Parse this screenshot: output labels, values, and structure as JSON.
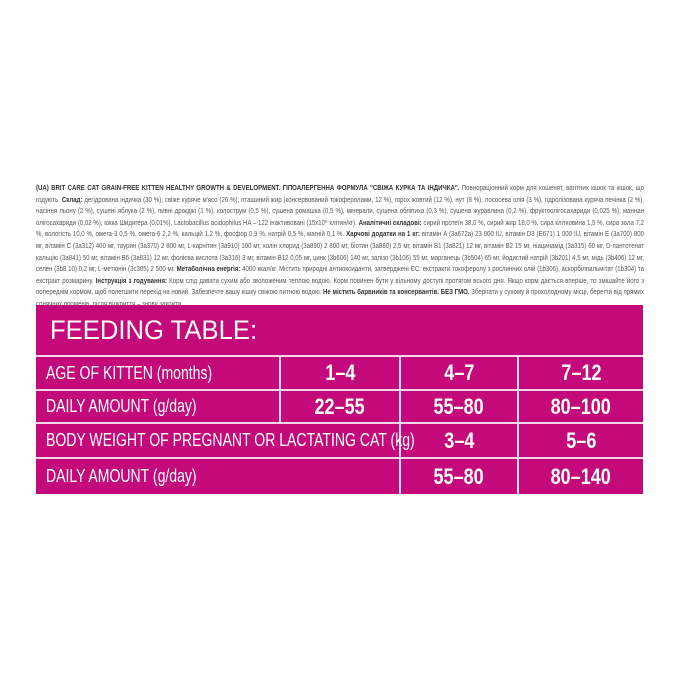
{
  "label": {
    "segments": [
      {
        "bold": true,
        "text": "(UA) BRIT CARE CAT GRAIN-FREE KITTEN HEALTHY GROWTH & DEVELOPMENT. ГІПОАЛЕРГЕННА ФОРМУЛА \"СВІЖА КУРКА ТА ІНДИЧКА\". "
      },
      {
        "bold": false,
        "text": "Повнораціонний корм для кошенят, вагітних кішок та кішок, що годують. "
      },
      {
        "bold": true,
        "text": "Склад:"
      },
      {
        "bold": false,
        "text": " дегідрована індичка (30 %), свіже куряче м'ясо (26 %), пташиний жир (консервований токоферолами, 12 %), горох жовтий (12 %), нут (8 %), лососева олія (3 %), гідролізована куряча печінка (2 %), насіння льону (2 %), сушені яблука (2 %), пивні дріжджі (1 %), колострум (0,5 %), сушена ромашка (0,5 %), мінерали, сушена обліпиха (0,3 %), сушена журавлина (0,2 %), фруктоолігосахариди (0,025 %), маннан олігосахариди (0,02 %), юкка Шидигера (0,01%), Lactobacillus acidophilus HA – 122 інактивовані (15x10⁹ клітин/кг). "
      },
      {
        "bold": true,
        "text": "Аналітичні складові:"
      },
      {
        "bold": false,
        "text": " сирий протеїн 38,0 %, сирий жир 18,0 %, сира клітковина 1,5 %, сира зола 7,2 %, вологість 10,0 %, омега-3 0,5 %, омега-6 2,2 %, кальцій 1,2 %, фосфор 0,9 %, натрій 0,5 %, магній 0,1 %. "
      },
      {
        "bold": true,
        "text": "Харчові додатки на 1 кг:"
      },
      {
        "bold": false,
        "text": " вітамін A (3a672a) 23 000 IU, вітамін D3 (E671) 1 000 IU, вітамін E (3a700) 800 мг, вітамін C (3a312) 400 мг, таурин (3a370) 2 800 мг, L-карнітин (3a910) 100 мг, холін хлорид (3a890) 2 800 мг, біотин (3a880) 2,5 мг, вітамін B1 (3a821) 12 мг, вітамін B2 15 мг, ніацинамід (3a315) 60 мг, D-пантотенат кальцію (3a841) 50 мг, вітамін B6 (3a831) 12 мг, фолієва кислота (3a316) 3 мг, вітамін B12 0,05 мг, цинк (3b606) 140 мг, залізо (3b106) 55 мг, марганець (3b504) 65 мг, йодистий натрій (3b201) 4,5 мг, мідь (3b406) 12 мг, селен (3b8.10) 0,2 мг, L-метіонін (3c305) 2 500 мг. "
      },
      {
        "bold": true,
        "text": "Метаболічна енергія:"
      },
      {
        "bold": false,
        "text": " 4000 ккал/кг. Містить природні антиоксиданти, затверджені ЄС: екстракти токоферолу з рослинних олій (1b306), аскорбілпальмітат (1b304) та екстракт розмарину. "
      },
      {
        "bold": true,
        "text": "Інструкція з годування:"
      },
      {
        "bold": false,
        "text": " Корм слід давати сухим або зволоженим теплою водою. Корм повинен бути у вільному доступі протягом всього дня. Якщо корм дається вперше, то змішайте його з попереднім кормом, щоб полегшити перехід на новий. Забезпечте вашу кішку свіжою питною водою. "
      },
      {
        "bold": true,
        "text": "Не містить барвників та консервантів. БЕЗ ГМО."
      },
      {
        "bold": false,
        "text": " Зберігати у сухому й прохолодному місці, берегти від прямих сонячних променів, після відкриття – знову закрити."
      }
    ]
  },
  "feeding_table": {
    "title": "FEEDING TABLE:",
    "accent_color": "#c4097a",
    "rows": [
      {
        "label": "AGE OF KITTEN (months)",
        "values": [
          "1–4",
          "4–7",
          "7–12"
        ]
      },
      {
        "label": "DAILY AMOUNT (g/day)",
        "values": [
          "22–55",
          "55–80",
          "80–100"
        ]
      },
      {
        "label": "BODY WEIGHT OF PREGNANT OR LACTATING CAT (kg)",
        "values": [
          "3–4",
          "5–6"
        ]
      },
      {
        "label": "DAILY AMOUNT (g/day)",
        "values": [
          "55–80",
          "80–140"
        ]
      }
    ]
  }
}
